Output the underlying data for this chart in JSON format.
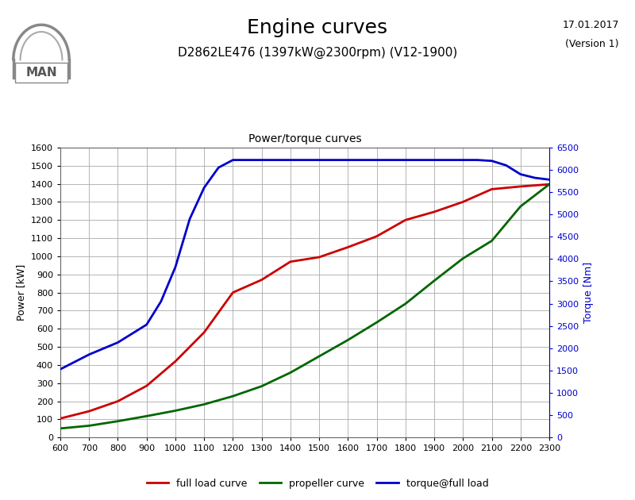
{
  "title": "Engine curves",
  "subtitle": "D2862LE476 (1397kW@2300rpm) (V12-1900)",
  "plot_title": "Power/torque curves",
  "date_text": "17.01.2017",
  "version_text": "(Version 1)",
  "ylabel_left": "Power [kW]",
  "ylabel_right": "Torque [Nm]",
  "x_ticks": [
    600,
    700,
    800,
    900,
    1000,
    1100,
    1200,
    1300,
    1400,
    1500,
    1600,
    1700,
    1800,
    1900,
    2000,
    2100,
    2200,
    2300
  ],
  "xlim": [
    600,
    2300
  ],
  "ylim_left": [
    0,
    1600
  ],
  "ylim_right": [
    0,
    6500
  ],
  "yticks_left": [
    0,
    100,
    200,
    300,
    400,
    500,
    600,
    700,
    800,
    900,
    1000,
    1100,
    1200,
    1300,
    1400,
    1500,
    1600
  ],
  "yticks_right": [
    0,
    500,
    1000,
    1500,
    2000,
    2500,
    3000,
    3500,
    4000,
    4500,
    5000,
    5500,
    6000,
    6500
  ],
  "full_load_rpm": [
    600,
    700,
    800,
    900,
    1000,
    1100,
    1200,
    1300,
    1400,
    1500,
    1600,
    1700,
    1800,
    1900,
    2000,
    2100,
    2200,
    2300
  ],
  "full_load_power": [
    105,
    145,
    200,
    285,
    420,
    580,
    800,
    870,
    970,
    995,
    1050,
    1110,
    1200,
    1245,
    1300,
    1370,
    1385,
    1397
  ],
  "propeller_rpm": [
    600,
    700,
    800,
    900,
    1000,
    1100,
    1200,
    1300,
    1400,
    1500,
    1600,
    1700,
    1800,
    1900,
    2000,
    2100,
    2200,
    2300
  ],
  "propeller_power": [
    50,
    65,
    90,
    118,
    148,
    183,
    228,
    283,
    358,
    448,
    538,
    635,
    738,
    865,
    988,
    1085,
    1275,
    1397
  ],
  "torque_rpm": [
    600,
    700,
    800,
    900,
    950,
    1000,
    1050,
    1100,
    1150,
    1200,
    1300,
    1400,
    1500,
    1600,
    1700,
    1800,
    1900,
    2000,
    2050,
    2100,
    2150,
    2200,
    2250,
    2300
  ],
  "torque_Nm": [
    1530,
    1860,
    2130,
    2530,
    3050,
    3820,
    4900,
    5600,
    6050,
    6220,
    6220,
    6220,
    6220,
    6220,
    6220,
    6220,
    6220,
    6220,
    6220,
    6200,
    6100,
    5900,
    5820,
    5780
  ],
  "color_full_load": "#cc0000",
  "color_propeller": "#006600",
  "color_torque": "#0000cc",
  "bg_color": "#ffffff",
  "grid_color": "#aaaaaa",
  "legend_labels": [
    "full load curve",
    "propeller curve",
    "torque@full load"
  ]
}
